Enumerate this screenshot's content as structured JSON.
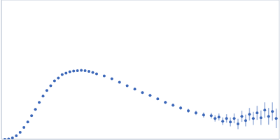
{
  "chart_data": {
    "type": "scatter",
    "x": [
      0,
      0.05,
      0.1,
      0.15,
      0.2,
      0.25,
      0.3,
      0.35,
      0.4,
      0.45,
      0.5,
      0.55,
      0.6,
      0.65,
      0.7,
      0.75,
      0.8,
      0.85,
      0.9,
      0.95,
      1.0,
      1.05,
      1.1,
      1.15,
      1.2,
      1.3,
      1.4,
      1.5,
      1.6,
      1.7,
      1.8,
      1.9,
      2.0,
      2.1,
      2.2,
      2.3,
      2.4,
      2.5,
      2.6,
      2.7,
      2.75,
      2.8,
      2.85,
      2.9,
      2.95,
      3.0,
      3.05,
      3.1,
      3.15,
      3.2,
      3.25,
      3.3,
      3.35,
      3.4,
      3.45,
      3.5,
      3.55
    ],
    "series": [
      {
        "color": "#3a66b8",
        "marker": "circle",
        "values": [
          0,
          0.005,
          0.02,
          0.05,
          0.1,
          0.17,
          0.25,
          0.34,
          0.43,
          0.53,
          0.62,
          0.7,
          0.77,
          0.84,
          0.88,
          0.93,
          0.95,
          0.97,
          0.98,
          0.985,
          0.99,
          0.985,
          0.975,
          0.96,
          0.94,
          0.91,
          0.87,
          0.82,
          0.77,
          0.72,
          0.67,
          0.63,
          0.58,
          0.53,
          0.49,
          0.45,
          0.41,
          0.38,
          0.35,
          0.34,
          0.3,
          0.32,
          0.26,
          0.3,
          0.25,
          0.3,
          0.22,
          0.33,
          0.27,
          0.36,
          0.3,
          0.38,
          0.31,
          0.42,
          0.33,
          0.4,
          0.3
        ],
        "errors": [
          0.002,
          0.002,
          0.002,
          0.002,
          0.002,
          0.003,
          0.003,
          0.003,
          0.003,
          0.003,
          0.004,
          0.004,
          0.004,
          0.004,
          0.005,
          0.005,
          0.005,
          0.006,
          0.006,
          0.006,
          0.007,
          0.007,
          0.008,
          0.008,
          0.009,
          0.01,
          0.011,
          0.012,
          0.013,
          0.014,
          0.015,
          0.016,
          0.018,
          0.02,
          0.022,
          0.025,
          0.028,
          0.03,
          0.035,
          0.04,
          0.045,
          0.05,
          0.055,
          0.06,
          0.065,
          0.07,
          0.075,
          0.08,
          0.085,
          0.09,
          0.095,
          0.1,
          0.105,
          0.11,
          0.12,
          0.13,
          0.14
        ]
      }
    ],
    "xlim": [
      -0.045,
      3.59
    ],
    "xticks": [
      1,
      3
    ],
    "ylim": [
      0,
      2
    ],
    "yticks": [
      1
    ],
    "grid": true,
    "tick_labels": false
  }
}
